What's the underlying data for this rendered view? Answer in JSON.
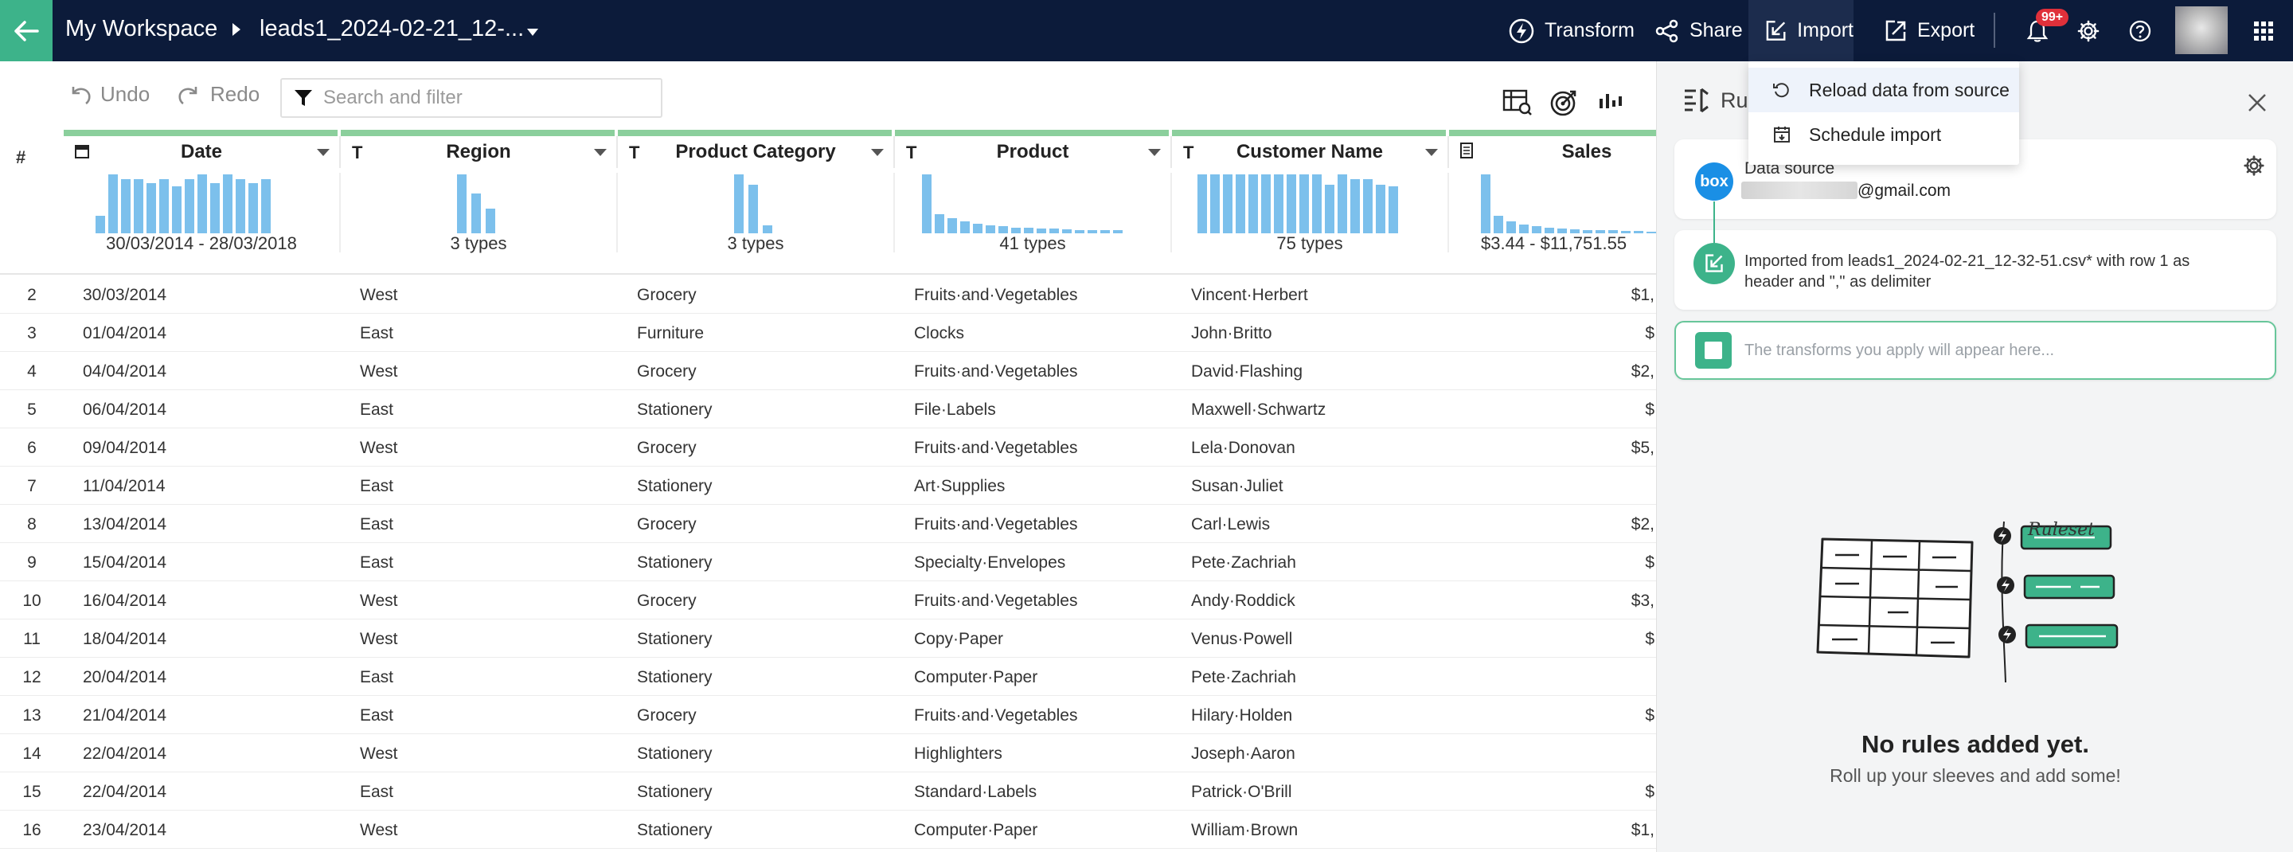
{
  "topbar": {
    "workspace": "My Workspace",
    "file_name": "leads1_2024-02-21_12-...",
    "actions": {
      "transform": "Transform",
      "share": "Share",
      "import": "Import",
      "export": "Export"
    },
    "notification_badge": "99+",
    "accent_color": "#3db38a",
    "background_color": "#0c1b3a"
  },
  "import_menu": {
    "items": [
      "Reload data from source",
      "Schedule import"
    ],
    "highlighted": "Reload data from source"
  },
  "toolbar": {
    "undo": "Undo",
    "redo": "Redo",
    "search_placeholder": "Search and filter"
  },
  "grid": {
    "row_number_header": "#",
    "columns": [
      {
        "name": "Date",
        "type_icon": "calendar-icon",
        "summary": "30/03/2014 - 28/03/2018"
      },
      {
        "name": "Region",
        "type_icon": "T",
        "summary": "3 types"
      },
      {
        "name": "Product Category",
        "type_icon": "T",
        "summary": "3 types"
      },
      {
        "name": "Product",
        "type_icon": "T",
        "summary": "41 types"
      },
      {
        "name": "Customer Name",
        "type_icon": "T",
        "summary": "75 types"
      },
      {
        "name": "Sales",
        "type_icon": "number-icon",
        "summary": "$3.44 - $11,751.55"
      }
    ],
    "rows": [
      {
        "n": "2",
        "date": "30/03/2014",
        "region": "West",
        "category": "Grocery",
        "product": "Fruits·and·Vegetables",
        "customer": "Vincent·Herbert",
        "sales": "$1,"
      },
      {
        "n": "3",
        "date": "01/04/2014",
        "region": "East",
        "category": "Furniture",
        "product": "Clocks",
        "customer": "John·Britto",
        "sales": "$"
      },
      {
        "n": "4",
        "date": "04/04/2014",
        "region": "West",
        "category": "Grocery",
        "product": "Fruits·and·Vegetables",
        "customer": "David·Flashing",
        "sales": "$2,"
      },
      {
        "n": "5",
        "date": "06/04/2014",
        "region": "East",
        "category": "Stationery",
        "product": "File·Labels",
        "customer": "Maxwell·Schwartz",
        "sales": "$"
      },
      {
        "n": "6",
        "date": "09/04/2014",
        "region": "West",
        "category": "Grocery",
        "product": "Fruits·and·Vegetables",
        "customer": "Lela·Donovan",
        "sales": "$5,"
      },
      {
        "n": "7",
        "date": "11/04/2014",
        "region": "East",
        "category": "Stationery",
        "product": "Art·Supplies",
        "customer": "Susan·Juliet",
        "sales": ""
      },
      {
        "n": "8",
        "date": "13/04/2014",
        "region": "East",
        "category": "Grocery",
        "product": "Fruits·and·Vegetables",
        "customer": "Carl·Lewis",
        "sales": "$2,"
      },
      {
        "n": "9",
        "date": "15/04/2014",
        "region": "East",
        "category": "Stationery",
        "product": "Specialty·Envelopes",
        "customer": "Pete·Zachriah",
        "sales": "$"
      },
      {
        "n": "10",
        "date": "16/04/2014",
        "region": "West",
        "category": "Grocery",
        "product": "Fruits·and·Vegetables",
        "customer": "Andy·Roddick",
        "sales": "$3,"
      },
      {
        "n": "11",
        "date": "18/04/2014",
        "region": "West",
        "category": "Stationery",
        "product": "Copy·Paper",
        "customer": "Venus·Powell",
        "sales": "$"
      },
      {
        "n": "12",
        "date": "20/04/2014",
        "region": "East",
        "category": "Stationery",
        "product": "Computer·Paper",
        "customer": "Pete·Zachriah",
        "sales": ""
      },
      {
        "n": "13",
        "date": "21/04/2014",
        "region": "East",
        "category": "Grocery",
        "product": "Fruits·and·Vegetables",
        "customer": "Hilary·Holden",
        "sales": "$"
      },
      {
        "n": "14",
        "date": "22/04/2014",
        "region": "West",
        "category": "Stationery",
        "product": "Highlighters",
        "customer": "Joseph·Aaron",
        "sales": ""
      },
      {
        "n": "15",
        "date": "22/04/2014",
        "region": "East",
        "category": "Stationery",
        "product": "Standard·Labels",
        "customer": "Patrick·O'Brill",
        "sales": "$"
      },
      {
        "n": "16",
        "date": "23/04/2014",
        "region": "West",
        "category": "Stationery",
        "product": "Computer·Paper",
        "customer": "William·Brown",
        "sales": "$1,"
      }
    ]
  },
  "panel": {
    "title": "Rul",
    "data_source_label": "Data source",
    "data_source_email": "@gmail.com",
    "box_logo": "box",
    "import_text": "Imported from leads1_2024-02-21_12-32-51.csv* with row 1 as header and \",\" as delimiter",
    "empty_text": "The transforms you apply will appear here...",
    "ruleset_label": "Ruleset",
    "no_rules_title": "No rules added yet.",
    "no_rules_subtitle": "Roll up your sleeves and add some!"
  }
}
